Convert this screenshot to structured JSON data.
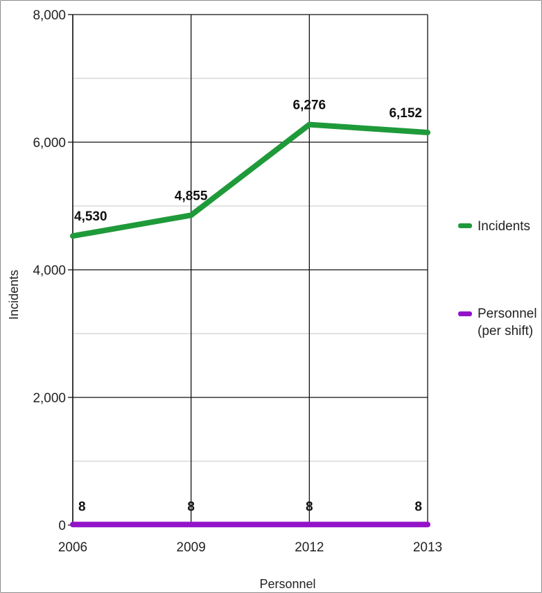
{
  "chart_data": {
    "type": "line",
    "categories": [
      "2006",
      "2009",
      "2012",
      "2013"
    ],
    "series": [
      {
        "name": "Incidents",
        "values": [
          4530,
          4855,
          6276,
          6152
        ],
        "labels": [
          "4,530",
          "4,855",
          "6,276",
          "6,152"
        ],
        "color": "#1f9a3a"
      },
      {
        "name": "Personnel (per shift)",
        "values": [
          8,
          8,
          8,
          8
        ],
        "labels": [
          "8",
          "8",
          "8",
          "8"
        ],
        "color": "#9313c9"
      }
    ],
    "ylim": [
      0,
      8000
    ],
    "yticks": [
      0,
      2000,
      4000,
      6000,
      8000
    ],
    "ytick_labels": [
      "0",
      "2,000",
      "4,000",
      "6,000",
      "8,000"
    ],
    "ylabel": "Incidents",
    "xlabel": "Personnel",
    "grid": true,
    "legend_position": "right"
  },
  "legend": {
    "incidents": "Incidents",
    "personnel_line1": "Personnel",
    "personnel_line2": "(per shift)"
  }
}
